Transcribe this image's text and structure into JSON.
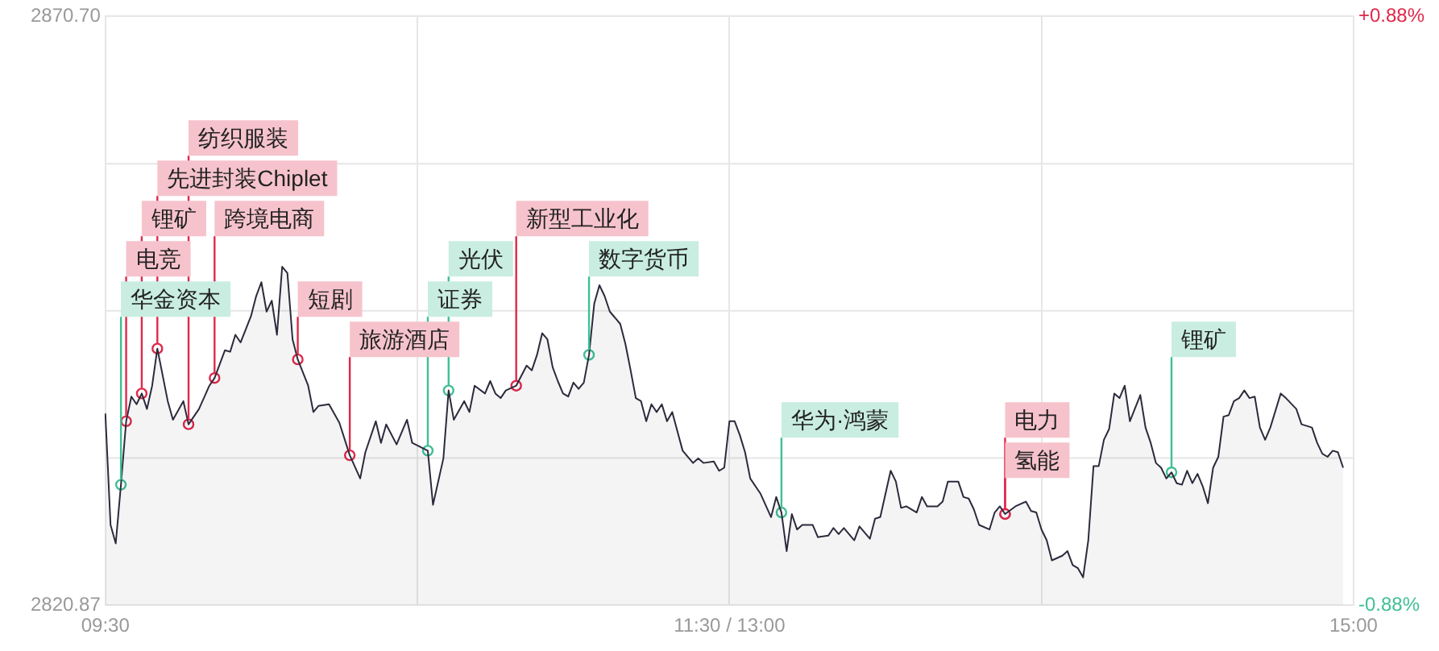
{
  "chart_data": {
    "type": "area",
    "grid": true,
    "legend": false,
    "categories": [
      "09:30",
      null,
      null,
      null,
      null,
      null,
      null,
      null,
      null,
      null,
      null,
      null,
      null,
      null,
      null,
      null,
      null,
      null,
      null,
      null,
      null,
      null,
      null,
      null,
      null,
      null,
      null,
      null,
      null,
      null,
      null,
      null,
      null,
      null,
      null,
      null,
      null,
      null,
      null,
      null,
      null,
      null,
      null,
      null,
      null,
      null,
      null,
      null,
      null,
      null,
      null,
      null,
      null,
      null,
      null,
      null,
      null,
      null,
      null,
      null,
      null,
      null,
      null,
      null,
      null,
      null,
      null,
      null,
      null,
      null,
      null,
      null,
      null,
      null,
      null,
      null,
      null,
      null,
      null,
      null,
      null,
      null,
      null,
      null,
      null,
      null,
      null,
      null,
      null,
      null,
      null,
      null,
      null,
      null,
      null,
      null,
      null,
      null,
      null,
      null,
      null,
      null,
      null,
      null,
      null,
      null,
      null,
      null,
      null,
      null,
      null,
      null,
      null,
      null,
      null,
      null,
      null,
      null,
      null,
      null,
      "11:30 / 13:00",
      null,
      null,
      null,
      null,
      null,
      null,
      null,
      null,
      null,
      null,
      null,
      null,
      null,
      null,
      null,
      null,
      null,
      null,
      null,
      null,
      null,
      null,
      null,
      null,
      null,
      null,
      null,
      null,
      null,
      null,
      null,
      null,
      null,
      null,
      null,
      null,
      null,
      null,
      null,
      null,
      null,
      null,
      null,
      null,
      null,
      null,
      null,
      null,
      null,
      null,
      null,
      null,
      null,
      null,
      null,
      null,
      null,
      null,
      null,
      null,
      null,
      null,
      null,
      null,
      null,
      null,
      null,
      null,
      null,
      null,
      null,
      null,
      null,
      null,
      null,
      null,
      null,
      null,
      null,
      null,
      null,
      null,
      null,
      null,
      null,
      null,
      null,
      null,
      null,
      null,
      null,
      null,
      null,
      null,
      null,
      null,
      null,
      null,
      null,
      null,
      null,
      null,
      null,
      null,
      null,
      null,
      null,
      null,
      null,
      null,
      null,
      null,
      null,
      null,
      null,
      null,
      null,
      null,
      null,
      "15:00"
    ],
    "ylim": [
      2820.87,
      2870.7
    ],
    "yticks": [
      {
        "value": 2820.87,
        "label": "2820.87"
      },
      {
        "value": 2870.7,
        "label": "2870.70"
      }
    ],
    "y2lim": [
      -0.88,
      0.88
    ],
    "y2ticks": [
      {
        "value": -0.88,
        "label": "-0.88%"
      },
      {
        "value": 0.88,
        "label": "+0.88%"
      }
    ],
    "ref_lines": [
      {
        "axis": "y",
        "value": 2833.33,
        "color": "#e6e6e6"
      },
      {
        "axis": "y",
        "value": 2845.785,
        "color": "#e6e6e6"
      },
      {
        "axis": "y",
        "value": 2858.24,
        "color": "#e6e6e6"
      }
    ],
    "series": [
      {
        "color": "#2b2b3c",
        "values": [
          2837.09,
          2827.67,
          2826.1,
          2831.07,
          2836.44,
          2838.53,
          2837.88,
          2838.79,
          2837.48,
          2839.45,
          2842.59,
          null,
          2838.14,
          2836.57,
          null,
          2838.14,
          2836.18,
          null,
          2837.48,
          null,
          2839.45,
          2840.1,
          null,
          2842.45,
          2842.32,
          2843.76,
          2843.11,
          null,
          2845.33,
          2847.03,
          2848.21,
          2845.72,
          2846.64,
          2843.76,
          2849.52,
          2848.99,
          2843.37,
          2841.67,
          null,
          2839.45,
          2837.22,
          2837.75,
          null,
          2837.88,
          null,
          2836.31,
          null,
          2833.56,
          null,
          2831.6,
          2833.82,
          null,
          2836.44,
          2834.61,
          2836.18,
          null,
          2834.48,
          null,
          2836.57,
          2834.61,
          null,
          null,
          2833.95,
          2829.37,
          null,
          2833.3,
          2839.05,
          2836.57,
          null,
          2838.14,
          2837.22,
          2839.45,
          null,
          2838.79,
          2839.84,
          2838.79,
          2838.4,
          2839.05,
          null,
          2839.45,
          null,
          2841.15,
          2840.75,
          2842.06,
          2843.89,
          2843.37,
          2841.02,
          2839.84,
          2838.79,
          2838.53,
          2839.71,
          2839.18,
          2839.71,
          2842.06,
          2846.38,
          2847.95,
          2847.03,
          2845.72,
          null,
          2844.68,
          2842.98,
          2840.75,
          2838.4,
          2838.14,
          2836.44,
          2837.88,
          2837.22,
          2837.88,
          2836.44,
          2837.22,
          null,
          2833.95,
          null,
          2832.91,
          2833.3,
          2832.91,
          null,
          2833.04,
          2832.25,
          2832.51,
          2836.44,
          2836.44,
          2835.26,
          2833.82,
          2831.6,
          null,
          2830.29,
          null,
          2828.33,
          2830.03,
          2828.72,
          2825.45,
          2828.59,
          2827.28,
          2827.67,
          null,
          2827.67,
          2826.63,
          null,
          2826.76,
          2827.41,
          2826.89,
          2827.41,
          null,
          2826.37,
          2827.54,
          null,
          2826.5,
          2828.2,
          2828.33,
          null,
          2832.25,
          2831.34,
          2829.11,
          2829.24,
          null,
          2828.72,
          2830.03,
          2829.24,
          null,
          2829.24,
          2829.64,
          2831.34,
          null,
          2831.34,
          2830.03,
          2829.9,
          2828.98,
          2827.67,
          null,
          2827.28,
          2828.72,
          2829.24,
          2828.59,
          null,
          2829.24,
          null,
          2829.64,
          2828.85,
          2828.72,
          2827.28,
          2826.37,
          2824.67,
          null,
          2825.06,
          2825.45,
          2824.27,
          2824.01,
          2823.23,
          2826.37,
          2832.64,
          2832.64,
          2834.87,
          2835.78,
          2838.79,
          2838.4,
          2839.45,
          2836.44,
          null,
          2838.66,
          2835.91,
          2834.61,
          2832.91,
          2832.51,
          2831.6,
          2832.12,
          2831.2,
          2831.07,
          2832.25,
          2831.2,
          2831.99,
          2830.94,
          2829.5,
          2832.51,
          2833.43,
          2836.83,
          2836.96,
          2838.14,
          2838.4,
          2839.05,
          2838.4,
          2838.53,
          2835.91,
          2834.87,
          2835.91,
          null,
          2838.79,
          2838.4,
          null,
          2837.48,
          2836.18,
          null,
          2835.91,
          2834.61,
          2833.69,
          2833.43,
          2833.95,
          2833.82,
          2832.51,
          null,
          null
        ]
      },
      {
        "type": "scatter",
        "color": "#e0284a",
        "value_labels": [
          null,
          null,
          null,
          null,
          "电竞",
          null,
          null,
          "锂矿",
          null,
          null,
          "先进封装Chiplet",
          null,
          null,
          null,
          null,
          null,
          "纺织服装",
          null,
          null,
          null,
          null,
          "跨境电商",
          null,
          null,
          null,
          null,
          null,
          null,
          null,
          null,
          null,
          null,
          null,
          null,
          null,
          null,
          null,
          "短剧",
          null,
          null,
          null,
          null,
          null,
          null,
          null,
          null,
          null,
          "旅游酒店",
          null,
          null,
          null,
          null,
          null,
          null,
          null,
          null,
          null,
          null,
          null,
          null,
          null,
          null,
          null,
          null,
          null,
          null,
          null,
          null,
          null,
          null,
          null,
          null,
          null,
          null,
          null,
          null,
          null,
          null,
          null,
          "新型工业化",
          null,
          null,
          null,
          null,
          null,
          null,
          null,
          null,
          null,
          null,
          null,
          null,
          null,
          null,
          null,
          null,
          null,
          null,
          null,
          null,
          null,
          null,
          null,
          null,
          null,
          null,
          null,
          null,
          null,
          null,
          null,
          null,
          null,
          null,
          null,
          null,
          null,
          null,
          null,
          null,
          null,
          null,
          null,
          null,
          null,
          null,
          null,
          null,
          null,
          null,
          null,
          null,
          null,
          null,
          null,
          null,
          null,
          null,
          null,
          null,
          null,
          null,
          null,
          null,
          null,
          null,
          null,
          null,
          null,
          null,
          null,
          null,
          null,
          null,
          null,
          null,
          null,
          null,
          null,
          null,
          null,
          null,
          null,
          null,
          null,
          null,
          null,
          null,
          null,
          null,
          null,
          null,
          null,
          "氢能",
          null,
          null,
          null,
          null,
          null,
          null,
          null,
          null,
          null,
          null,
          null,
          null,
          null,
          null,
          null,
          null,
          null,
          null,
          null,
          null,
          null,
          null,
          null,
          null,
          null,
          null,
          null,
          null,
          null,
          null,
          null,
          null,
          null,
          null,
          null,
          null,
          null,
          null,
          null,
          null,
          null,
          null,
          null,
          null,
          null,
          null,
          null,
          null,
          null,
          null,
          null,
          null,
          null,
          null,
          null,
          null,
          null,
          null,
          null,
          null,
          null,
          null,
          null,
          null,
          null,
          null,
          null
        ],
        "values": [
          null,
          null,
          null,
          null,
          2836.44,
          null,
          null,
          2838.79,
          null,
          null,
          2842.59,
          null,
          null,
          null,
          null,
          null,
          2836.18,
          null,
          null,
          null,
          null,
          2840.1,
          null,
          null,
          null,
          null,
          null,
          null,
          null,
          null,
          null,
          null,
          null,
          null,
          null,
          null,
          null,
          2841.67,
          null,
          null,
          null,
          null,
          null,
          null,
          null,
          null,
          null,
          2833.56,
          null,
          null,
          null,
          null,
          null,
          null,
          null,
          null,
          null,
          null,
          null,
          null,
          null,
          null,
          null,
          null,
          null,
          null,
          null,
          null,
          null,
          null,
          null,
          null,
          null,
          null,
          null,
          null,
          null,
          null,
          null,
          2839.45,
          null,
          null,
          null,
          null,
          null,
          null,
          null,
          null,
          null,
          null,
          null,
          null,
          null,
          null,
          null,
          null,
          null,
          null,
          null,
          null,
          null,
          null,
          null,
          null,
          null,
          null,
          null,
          null,
          null,
          null,
          null,
          null,
          null,
          null,
          null,
          null,
          null,
          null,
          null,
          null,
          null,
          null,
          null,
          null,
          null,
          null,
          null,
          null,
          null,
          null,
          null,
          null,
          null,
          null,
          null,
          null,
          null,
          null,
          null,
          null,
          null,
          null,
          null,
          null,
          null,
          null,
          null,
          null,
          null,
          null,
          null,
          null,
          null,
          null,
          null,
          null,
          null,
          null,
          null,
          null,
          null,
          null,
          null,
          null,
          null,
          null,
          null,
          null,
          null,
          null,
          null,
          null,
          null,
          2828.59,
          null,
          null,
          null,
          null,
          null,
          null,
          null,
          null,
          null,
          null,
          null,
          null,
          null,
          null,
          null,
          null,
          null,
          null,
          null,
          null,
          null,
          null,
          null,
          null,
          null,
          null,
          null,
          null,
          null,
          null,
          null,
          null,
          null,
          null,
          null,
          null,
          null,
          null,
          null,
          null,
          null,
          null,
          null,
          null,
          null,
          null,
          null,
          null,
          null,
          null,
          null,
          null,
          null,
          null,
          null,
          null,
          null,
          null,
          null,
          null,
          null,
          null,
          null,
          null,
          null,
          null,
          null
        ]
      },
      {
        "type": "scatter",
        "color": "#3fbf95",
        "value_labels": [
          null,
          null,
          null,
          "华金资本",
          null,
          null,
          null,
          null,
          null,
          null,
          null,
          null,
          null,
          null,
          null,
          null,
          null,
          null,
          null,
          null,
          null,
          null,
          null,
          null,
          null,
          null,
          null,
          null,
          null,
          null,
          null,
          null,
          null,
          null,
          null,
          null,
          null,
          null,
          null,
          null,
          null,
          null,
          null,
          null,
          null,
          null,
          null,
          null,
          null,
          null,
          null,
          null,
          null,
          null,
          null,
          null,
          null,
          null,
          null,
          null,
          null,
          null,
          "证券",
          null,
          null,
          null,
          "光伏",
          null,
          null,
          null,
          null,
          null,
          null,
          null,
          null,
          null,
          null,
          null,
          null,
          null,
          null,
          null,
          null,
          null,
          null,
          null,
          null,
          null,
          null,
          null,
          null,
          null,
          null,
          "数字货币",
          null,
          null,
          null,
          null,
          null,
          null,
          null,
          null,
          null,
          null,
          null,
          null,
          null,
          null,
          null,
          null,
          null,
          null,
          null,
          null,
          null,
          null,
          null,
          null,
          null,
          null,
          null,
          null,
          null,
          null,
          null,
          null,
          null,
          null,
          null,
          null,
          "华为·鸿蒙",
          null,
          null,
          null,
          null,
          null,
          null,
          null,
          null,
          null,
          null,
          null,
          null,
          null,
          null,
          null,
          null,
          null,
          null,
          null,
          null,
          null,
          null,
          null,
          null,
          null,
          null,
          null,
          null,
          null,
          null,
          null,
          null,
          null,
          null,
          null,
          null,
          null,
          null,
          null,
          null,
          null,
          null,
          null,
          null,
          null,
          null,
          null,
          null,
          null,
          null,
          null,
          null,
          null,
          null,
          null,
          null,
          null,
          null,
          null,
          null,
          null,
          null,
          null,
          null,
          null,
          null,
          null,
          null,
          null,
          null,
          null,
          null,
          null,
          null,
          "锂矿",
          null,
          null,
          null,
          null,
          null,
          null,
          null,
          null,
          null,
          null,
          null,
          null,
          null,
          null,
          null,
          null,
          null,
          null,
          null,
          null,
          null,
          null,
          null,
          null,
          null,
          null,
          null,
          null,
          null,
          null,
          null,
          null,
          null,
          null,
          null
        ],
        "values": [
          null,
          null,
          null,
          2831.07,
          null,
          null,
          null,
          null,
          null,
          null,
          null,
          null,
          null,
          null,
          null,
          null,
          null,
          null,
          null,
          null,
          null,
          null,
          null,
          null,
          null,
          null,
          null,
          null,
          null,
          null,
          null,
          null,
          null,
          null,
          null,
          null,
          null,
          null,
          null,
          null,
          null,
          null,
          null,
          null,
          null,
          null,
          null,
          null,
          null,
          null,
          null,
          null,
          null,
          null,
          null,
          null,
          null,
          null,
          null,
          null,
          null,
          null,
          2833.95,
          null,
          null,
          null,
          2839.05,
          null,
          null,
          null,
          null,
          null,
          null,
          null,
          null,
          null,
          null,
          null,
          null,
          null,
          null,
          null,
          null,
          null,
          null,
          null,
          null,
          null,
          null,
          null,
          null,
          null,
          null,
          2842.06,
          null,
          null,
          null,
          null,
          null,
          null,
          null,
          null,
          null,
          null,
          null,
          null,
          null,
          null,
          null,
          null,
          null,
          null,
          null,
          null,
          null,
          null,
          null,
          null,
          null,
          null,
          null,
          null,
          null,
          null,
          null,
          null,
          null,
          null,
          null,
          null,
          2828.72,
          null,
          null,
          null,
          null,
          null,
          null,
          null,
          null,
          null,
          null,
          null,
          null,
          null,
          null,
          null,
          null,
          null,
          null,
          null,
          null,
          null,
          null,
          null,
          null,
          null,
          null,
          null,
          null,
          null,
          null,
          null,
          null,
          null,
          null,
          null,
          null,
          null,
          null,
          null,
          null,
          null,
          null,
          null,
          null,
          null,
          null,
          null,
          null,
          null,
          null,
          null,
          null,
          null,
          null,
          null,
          null,
          null,
          null,
          null,
          null,
          null,
          null,
          null,
          null,
          null,
          null,
          null,
          null,
          null,
          null,
          null,
          null,
          null,
          null,
          2832.12,
          null,
          null,
          null,
          null,
          null,
          null,
          null,
          null,
          null,
          null,
          null,
          null,
          null,
          null,
          null,
          null,
          null,
          null,
          null,
          null,
          null,
          null,
          null,
          null,
          null,
          null,
          null,
          null,
          null,
          null,
          null,
          null,
          null,
          null,
          null
        ]
      },
      {
        "type": "scatter",
        "color": "#e0284a",
        "value_labels": [
          null,
          null,
          null,
          null,
          null,
          null,
          null,
          null,
          null,
          null,
          null,
          null,
          null,
          null,
          null,
          null,
          null,
          null,
          null,
          null,
          null,
          null,
          null,
          null,
          null,
          null,
          null,
          null,
          null,
          null,
          null,
          null,
          null,
          null,
          null,
          null,
          null,
          null,
          null,
          null,
          null,
          null,
          null,
          null,
          null,
          null,
          null,
          null,
          null,
          null,
          null,
          null,
          null,
          null,
          null,
          null,
          null,
          null,
          null,
          null,
          null,
          null,
          null,
          null,
          null,
          null,
          null,
          null,
          null,
          null,
          null,
          null,
          null,
          null,
          null,
          null,
          null,
          null,
          null,
          null,
          null,
          null,
          null,
          null,
          null,
          null,
          null,
          null,
          null,
          null,
          null,
          null,
          null,
          null,
          null,
          null,
          null,
          null,
          null,
          null,
          null,
          null,
          null,
          null,
          null,
          null,
          null,
          null,
          null,
          null,
          null,
          null,
          null,
          null,
          null,
          null,
          null,
          null,
          null,
          null,
          null,
          null,
          null,
          null,
          null,
          null,
          null,
          null,
          null,
          null,
          null,
          null,
          null,
          null,
          null,
          null,
          null,
          null,
          null,
          null,
          null,
          null,
          null,
          null,
          null,
          null,
          null,
          null,
          null,
          null,
          null,
          null,
          null,
          null,
          null,
          null,
          null,
          null,
          null,
          null,
          null,
          null,
          null,
          null,
          null,
          null,
          null,
          null,
          null,
          null,
          null,
          null,
          null,
          "电力",
          null,
          null,
          null,
          null,
          null,
          null,
          null,
          null,
          null,
          null,
          null,
          null,
          null,
          null,
          null,
          null,
          null,
          null,
          null,
          null,
          null,
          null,
          null,
          null,
          null,
          null,
          null,
          null,
          null,
          null,
          null,
          null,
          null,
          null,
          null,
          null,
          null,
          null,
          null,
          null,
          null,
          null,
          null,
          null,
          null,
          null,
          null,
          null,
          null,
          null,
          null,
          null,
          null,
          null,
          null,
          null,
          null,
          null,
          null,
          null,
          null,
          null,
          null,
          null,
          null,
          null,
          null
        ],
        "values": [
          null,
          null,
          null,
          null,
          null,
          null,
          null,
          null,
          null,
          null,
          null,
          null,
          null,
          null,
          null,
          null,
          null,
          null,
          null,
          null,
          null,
          null,
          null,
          null,
          null,
          null,
          null,
          null,
          null,
          null,
          null,
          null,
          null,
          null,
          null,
          null,
          null,
          null,
          null,
          null,
          null,
          null,
          null,
          null,
          null,
          null,
          null,
          null,
          null,
          null,
          null,
          null,
          null,
          null,
          null,
          null,
          null,
          null,
          null,
          null,
          null,
          null,
          null,
          null,
          null,
          null,
          null,
          null,
          null,
          null,
          null,
          null,
          null,
          null,
          null,
          null,
          null,
          null,
          null,
          null,
          null,
          null,
          null,
          null,
          null,
          null,
          null,
          null,
          null,
          null,
          null,
          null,
          null,
          null,
          null,
          null,
          null,
          null,
          null,
          null,
          null,
          null,
          null,
          null,
          null,
          null,
          null,
          null,
          null,
          null,
          null,
          null,
          null,
          null,
          null,
          null,
          null,
          null,
          null,
          null,
          null,
          null,
          null,
          null,
          null,
          null,
          null,
          null,
          null,
          null,
          null,
          null,
          null,
          null,
          null,
          null,
          null,
          null,
          null,
          null,
          null,
          null,
          null,
          null,
          null,
          null,
          null,
          null,
          null,
          null,
          null,
          null,
          null,
          null,
          null,
          null,
          null,
          null,
          null,
          null,
          null,
          null,
          null,
          null,
          null,
          null,
          null,
          null,
          null,
          null,
          null,
          null,
          null,
          2828.59,
          null,
          null,
          null,
          null,
          null,
          null,
          null,
          null,
          null,
          null,
          null,
          null,
          null,
          null,
          null,
          null,
          null,
          null,
          null,
          null,
          null,
          null,
          null,
          null,
          null,
          null,
          null,
          null,
          null,
          null,
          null,
          null,
          null,
          null,
          null,
          null,
          null,
          null,
          null,
          null,
          null,
          null,
          null,
          null,
          null,
          null,
          null,
          null,
          null,
          null,
          null,
          null,
          null,
          null,
          null,
          null,
          null,
          null,
          null,
          null,
          null,
          null,
          null,
          null,
          null,
          null,
          null
        ]
      }
    ]
  }
}
